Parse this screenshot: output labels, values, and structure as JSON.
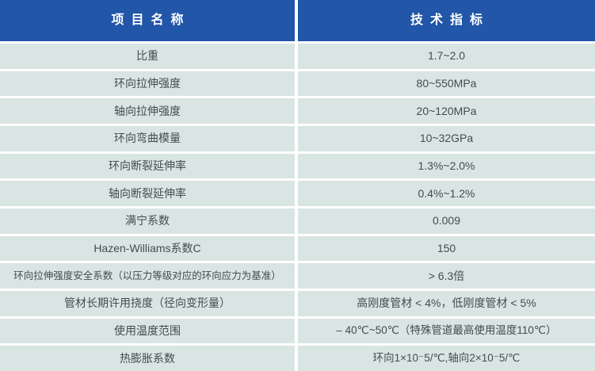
{
  "table": {
    "header": {
      "item_column": "项目名称",
      "spec_column": "技术指标"
    },
    "rows": [
      {
        "name": "比重",
        "value": "1.7~2.0"
      },
      {
        "name": "环向拉伸强度",
        "value": "80~550MPa"
      },
      {
        "name": "轴向拉伸强度",
        "value": "20~120MPa"
      },
      {
        "name": "环向弯曲模量",
        "value": "10~32GPa"
      },
      {
        "name": "环向断裂延伸率",
        "value": "1.3%~2.0%"
      },
      {
        "name": "轴向断裂延伸率",
        "value": "0.4%~1.2%"
      },
      {
        "name": "满宁系数",
        "value": "0.009"
      },
      {
        "name": "Hazen-Williams系数C",
        "value": "150"
      },
      {
        "name": "环向拉伸强度安全系数（以压力等级对应的环向应力为基准）",
        "value": "> 6.3倍"
      },
      {
        "name": "管材长期许用挠度（径向变形量）",
        "value": "高刚度管材 < 4%，低刚度管材 < 5%"
      },
      {
        "name": "使用温度范围",
        "value": "– 40℃~50℃（特殊管道最高使用温度110℃）"
      },
      {
        "name": "热膨胀系数",
        "value": "环向1×10⁻5/℃,轴向2×10⁻5/℃"
      }
    ]
  },
  "colors": {
    "header_background": "#2156A8",
    "header_text": "#FFFFFF",
    "cell_background": "#D9E5E3",
    "body_text": "#454C4C",
    "grid_gap": "#FFFFFF"
  }
}
